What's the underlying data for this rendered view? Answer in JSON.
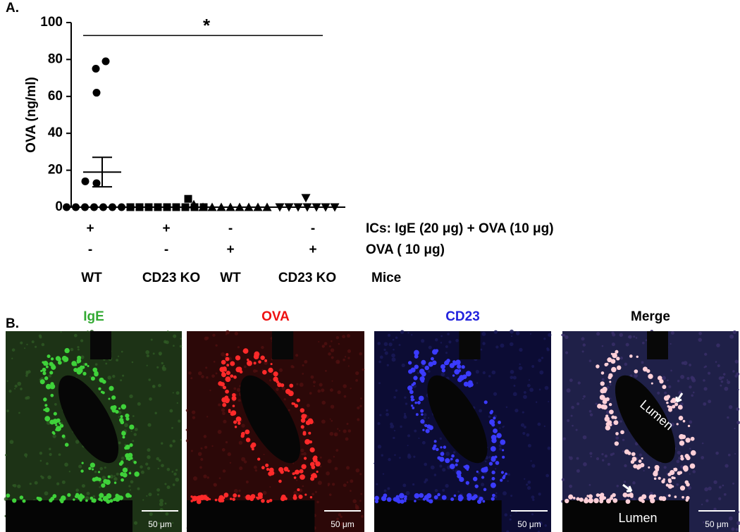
{
  "panel_labels": [
    "A.",
    "B."
  ],
  "chart_data": {
    "type": "scatter",
    "ylabel": "OVA (ng/ml)",
    "ylim": [
      0,
      100
    ],
    "yticks": [
      0,
      20,
      40,
      60,
      80,
      100
    ],
    "categories": [
      "WT",
      "CD23 KO",
      "WT",
      "CD23 KO"
    ],
    "condition_rows": [
      {
        "label": "ICs: IgE (20 μg) + OVA (10 μg)",
        "values": [
          "+",
          "+",
          "-",
          "-"
        ]
      },
      {
        "label": "OVA ( 10 μg)",
        "values": [
          "-",
          "-",
          "+",
          "+"
        ]
      }
    ],
    "category_row_label": "Mice",
    "color": "#000000",
    "series": [
      {
        "marker": "circle",
        "values": [
          79,
          75,
          62,
          14,
          13,
          0,
          0,
          0,
          0,
          0,
          0,
          0,
          0
        ],
        "mean": 19,
        "error": 8
      },
      {
        "marker": "square",
        "values": [
          4.5,
          0,
          0,
          0,
          0,
          0,
          0,
          0,
          0,
          0
        ]
      },
      {
        "marker": "triangle",
        "values": [
          1.5,
          0,
          0,
          0,
          0,
          0,
          0,
          0,
          0
        ]
      },
      {
        "marker": "triangle-down",
        "values": [
          5,
          0,
          0,
          0,
          0,
          0,
          0,
          0
        ]
      }
    ],
    "annotations": [
      {
        "text": "*",
        "y": 93,
        "from": 0,
        "to": 3
      }
    ]
  },
  "images": [
    {
      "title": "IgE",
      "title_color": "#33aa33",
      "scale_bar": "50 μm",
      "labels": []
    },
    {
      "title": "OVA",
      "title_color": "#ee1111",
      "scale_bar": "50 μm",
      "labels": []
    },
    {
      "title": "CD23",
      "title_color": "#2222dd",
      "scale_bar": "50 μm",
      "labels": []
    },
    {
      "title": "Merge",
      "title_color": "#000000",
      "scale_bar": "50 μm",
      "labels": [
        "Lumen",
        "Lumen"
      ]
    }
  ]
}
